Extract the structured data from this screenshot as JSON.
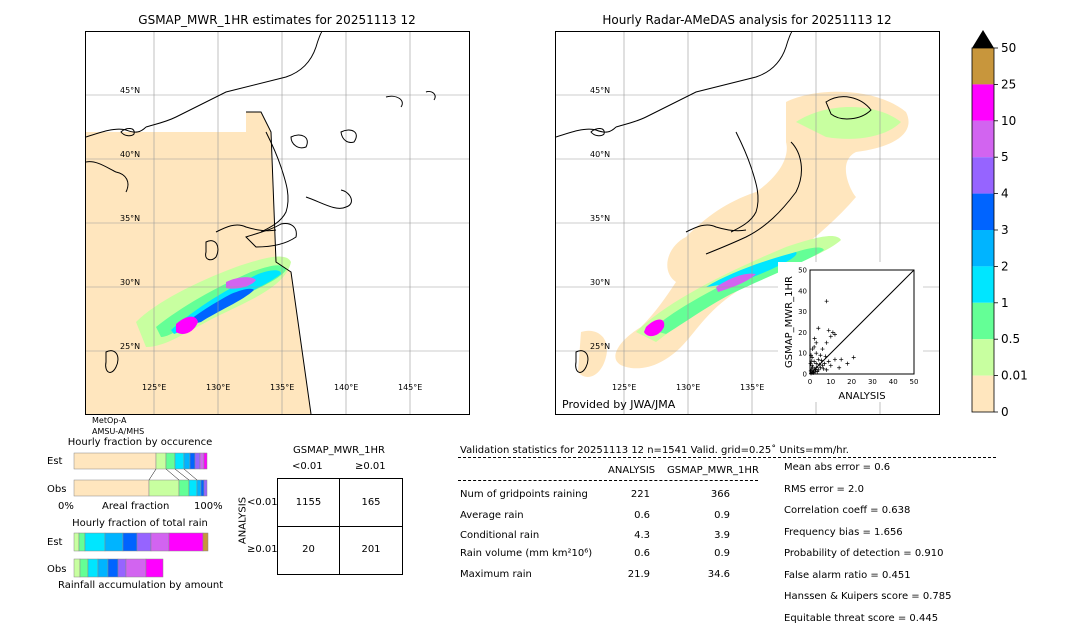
{
  "left_map": {
    "title": "GSMAP_MWR_1HR estimates for 20251113 12",
    "sensor1": "MetOp-A",
    "sensor2": "AMSU-A/MHS",
    "lat_labels": [
      "45°N",
      "40°N",
      "35°N",
      "30°N",
      "25°N"
    ],
    "lon_labels": [
      "125°E",
      "130°E",
      "135°E",
      "140°E",
      "145°E"
    ]
  },
  "right_map": {
    "title": "Hourly Radar-AMeDAS analysis for 20251113 12",
    "provider": "Provided by JWA/JMA",
    "lat_labels": [
      "45°N",
      "40°N",
      "35°N",
      "30°N",
      "25°N"
    ],
    "lon_labels": [
      "125°E",
      "130°E",
      "135°E"
    ]
  },
  "colorbar": {
    "ticks": [
      "50",
      "25",
      "10",
      "5",
      "4",
      "3",
      "2",
      "1",
      "0.5",
      "0.01",
      "0"
    ],
    "colors": [
      "#c8963c",
      "#ff00ff",
      "#d264f0",
      "#9664ff",
      "#0064ff",
      "#00b4ff",
      "#00e6ff",
      "#64ff96",
      "#c8ffa0",
      "#ffe6be"
    ]
  },
  "scatter": {
    "ylabel": "GSMAP_MWR_1HR",
    "xlabel": "ANALYSIS",
    "ticks": [
      "0",
      "10",
      "20",
      "30",
      "40",
      "50"
    ]
  },
  "fraction": {
    "occ_title": "Hourly fraction by occurence",
    "tot_title": "Hourly fraction of total rain",
    "est": "Est",
    "obs": "Obs",
    "axis_left": "0%",
    "axis_mid": "Areal fraction",
    "axis_right": "100%",
    "footer": "Rainfall accumulation by amount"
  },
  "contingency": {
    "title": "GSMAP_MWR_1HR",
    "col1": "<0.01",
    "col2": "≥0.01",
    "row1": "<0.01",
    "row2": "≥0.01",
    "side": "ANALYSIS",
    "cells": [
      "1155",
      "165",
      "20",
      "201"
    ]
  },
  "validation": {
    "header": "Validation statistics for 20251113 12  n=1541 Valid. grid=0.25˚ Units=mm/hr.",
    "col_analysis": "ANALYSIS",
    "col_gsmap": "GSMAP_MWR_1HR",
    "rows": [
      {
        "label": "Num of gridpoints raining",
        "a": "221",
        "g": "366"
      },
      {
        "label": "Average rain",
        "a": "0.6",
        "g": "0.9"
      },
      {
        "label": "Conditional rain",
        "a": "4.3",
        "g": "3.9"
      },
      {
        "label": "Rain volume (mm km²10⁶)",
        "a": "0.6",
        "g": "0.9"
      },
      {
        "label": "Maximum rain",
        "a": "21.9",
        "g": "34.6"
      }
    ],
    "scores": [
      "Mean abs error =    0.6",
      "RMS error =    2.0",
      "Correlation coeff =  0.638",
      "Frequency bias =  1.656",
      "Probability of detection =  0.910",
      "False alarm ratio =  0.451",
      "Hanssen & Kuipers score =  0.785",
      "Equitable threat score =  0.445"
    ]
  },
  "chart_data": {
    "type": "scatter",
    "xlabel": "ANALYSIS",
    "ylabel": "GSMAP_MWR_1HR",
    "xlim": [
      0,
      50
    ],
    "ylim": [
      0,
      50
    ],
    "points": [
      [
        0.5,
        0.3
      ],
      [
        1,
        1
      ],
      [
        1.5,
        0.5
      ],
      [
        2,
        2
      ],
      [
        0.8,
        2.5
      ],
      [
        2.5,
        1
      ],
      [
        3,
        3
      ],
      [
        1,
        4
      ],
      [
        4,
        2
      ],
      [
        3,
        5
      ],
      [
        5,
        3
      ],
      [
        2,
        6
      ],
      [
        6,
        4
      ],
      [
        4,
        7
      ],
      [
        7,
        5
      ],
      [
        1,
        8
      ],
      [
        8,
        2
      ],
      [
        5,
        9
      ],
      [
        9,
        6
      ],
      [
        3,
        10
      ],
      [
        10,
        4
      ],
      [
        6,
        12
      ],
      [
        12,
        7
      ],
      [
        2,
        13
      ],
      [
        8,
        15
      ],
      [
        10,
        18
      ],
      [
        11,
        20
      ],
      [
        9,
        21
      ],
      [
        12,
        19
      ],
      [
        4,
        22
      ],
      [
        8,
        35
      ],
      [
        15,
        7
      ],
      [
        18,
        5
      ],
      [
        21,
        8
      ],
      [
        14,
        3
      ],
      [
        3,
        15
      ],
      [
        0.3,
        5
      ],
      [
        0.5,
        9
      ],
      [
        1.2,
        12
      ],
      [
        2.2,
        17
      ],
      [
        0.4,
        1.5
      ],
      [
        1.8,
        0.8
      ],
      [
        2.8,
        2.2
      ],
      [
        3.5,
        1.2
      ],
      [
        1.3,
        3.3
      ],
      [
        0.6,
        6.2
      ],
      [
        4.5,
        4.5
      ],
      [
        5.5,
        6.5
      ],
      [
        6.5,
        2.5
      ],
      [
        7.5,
        8.5
      ]
    ]
  }
}
